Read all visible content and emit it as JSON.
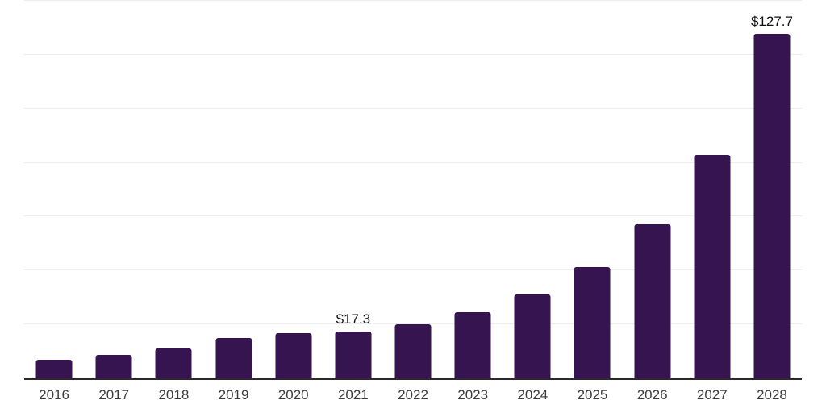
{
  "chart_data": {
    "type": "bar",
    "title": "",
    "xlabel": "",
    "ylabel": "",
    "categories": [
      "2016",
      "2017",
      "2018",
      "2019",
      "2020",
      "2021",
      "2022",
      "2023",
      "2024",
      "2025",
      "2026",
      "2027",
      "2028"
    ],
    "values": [
      6.9,
      8.6,
      11.1,
      15.1,
      16.8,
      17.3,
      20.0,
      24.5,
      31.0,
      41.3,
      57.0,
      83.0,
      127.7
    ],
    "data_labels": [
      {
        "index": 5,
        "text": "$17.3"
      },
      {
        "index": 12,
        "text": "$127.7"
      }
    ],
    "value_prefix": "$",
    "ylim": [
      0,
      140
    ],
    "gridline_step": 20,
    "grid": true,
    "legend": false,
    "colors": {
      "bar": "#351450",
      "axis_line": "#2a2a2a",
      "gridline": "#ededed",
      "year_label": "#3c3c3c",
      "value_label": "#111111",
      "background": "#ffffff"
    }
  }
}
